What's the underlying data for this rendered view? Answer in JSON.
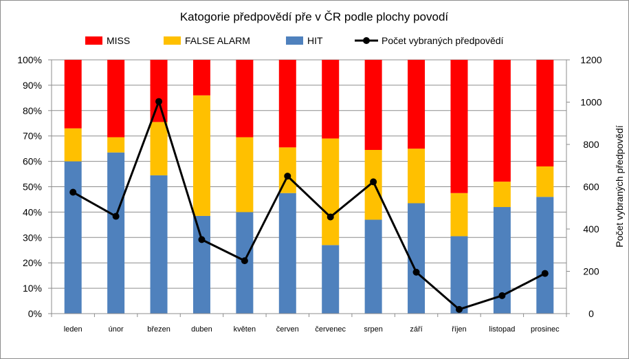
{
  "chart_data": {
    "type": "bar",
    "stacked": true,
    "normalized": true,
    "title": "Katogorie předpovědí pře v ČR podle plochy povodí",
    "categories": [
      "leden",
      "únor",
      "březen",
      "duben",
      "květen",
      "červen",
      "červenec",
      "srpen",
      "září",
      "říjen",
      "listopad",
      "prosinec"
    ],
    "series": [
      {
        "name": "HIT",
        "color": "#4f81bd",
        "values": [
          60,
          63.5,
          54.5,
          38.5,
          40,
          47.5,
          27,
          37,
          43.5,
          30.5,
          42,
          46
        ]
      },
      {
        "name": "FALSE ALARM",
        "color": "#ffc000",
        "values": [
          13,
          6,
          21,
          47.5,
          29.5,
          18,
          42,
          27.5,
          21.5,
          17,
          10,
          12
        ]
      },
      {
        "name": "MISS",
        "color": "#ff0000",
        "values": [
          27,
          30.5,
          24.5,
          14,
          30.5,
          34.5,
          31,
          35.5,
          35,
          52.5,
          48,
          42
        ]
      }
    ],
    "line": {
      "name": "Počet vybraných předpovědí",
      "color": "#000000",
      "axis": "right",
      "values": [
        574,
        460,
        1003,
        350,
        250,
        650,
        457,
        623,
        196,
        20,
        85,
        190
      ]
    },
    "y_left": {
      "ylim": [
        0,
        100
      ],
      "ticks": [
        "0%",
        "10%",
        "20%",
        "30%",
        "40%",
        "50%",
        "60%",
        "70%",
        "80%",
        "90%",
        "100%"
      ]
    },
    "y_right": {
      "ylim": [
        0,
        1200
      ],
      "ticks": [
        "0",
        "200",
        "400",
        "600",
        "800",
        "1000",
        "1200"
      ],
      "label": "Počet vybraných předpovědí"
    },
    "legend": {
      "placement": "top",
      "entries": [
        {
          "label": "MISS",
          "color": "#ff0000",
          "kind": "bar"
        },
        {
          "label": "FALSE ALARM",
          "color": "#ffc000",
          "kind": "bar"
        },
        {
          "label": "HIT",
          "color": "#4f81bd",
          "kind": "bar"
        },
        {
          "label": "Počet vybraných předpovědí",
          "color": "#000000",
          "kind": "line"
        }
      ]
    }
  }
}
